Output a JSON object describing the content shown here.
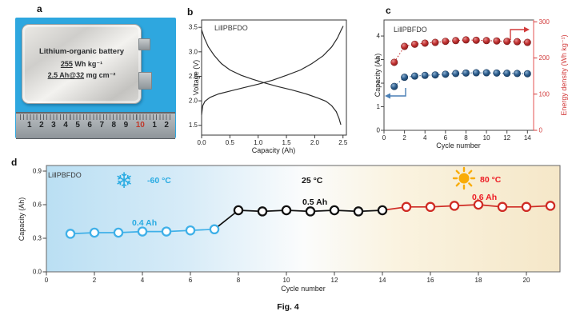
{
  "figure": {
    "caption": "Fig. 4"
  },
  "colors": {
    "photo_background": "#2ea7df",
    "capacity_blue": "#2d5e8e",
    "energy_red": "#c23030",
    "cold_blue": "#29abe2",
    "room_black": "#111111",
    "hot_red": "#cf2b24",
    "hot_text_red": "#ed1c24",
    "sun_yellow": "#f9ac08"
  },
  "panels": {
    "a": {
      "letter": "a",
      "battery_title": "Lithium-organic battery",
      "energy_density_value": "255",
      "energy_density_unit": " Wh kg⁻¹",
      "capacity_loading_value": "2.5 Ah@32",
      "capacity_loading_unit": " mg cm⁻²",
      "ruler": {
        "numbers": [
          "1",
          "2",
          "3",
          "4",
          "5",
          "6",
          "7",
          "8",
          "9",
          "10",
          "1",
          "2"
        ],
        "highlight_index": 9
      }
    },
    "b": {
      "letter": "b"
    },
    "c": {
      "letter": "c"
    },
    "d": {
      "letter": "d",
      "icons": {
        "snowflake": "❄",
        "sun": "sun-icon"
      }
    }
  },
  "chart_data": [
    {
      "id": "b",
      "type": "line",
      "title": "Li‖PBFDO",
      "xlabel": "Capacity (Ah)",
      "ylabel": "Voltage (V)",
      "xlim": [
        0,
        2.56
      ],
      "ylim": [
        1.3,
        3.65
      ],
      "xticks": [
        [
          0,
          "0.0"
        ],
        [
          0.5,
          "0.5"
        ],
        [
          1,
          "1.0"
        ],
        [
          1.5,
          "1.5"
        ],
        [
          2,
          "2.0"
        ],
        [
          2.5,
          "2.5"
        ]
      ],
      "yticks": [
        [
          1.5,
          "1.5"
        ],
        [
          2,
          "2.0"
        ],
        [
          2.5,
          "2.5"
        ],
        [
          3,
          "3.0"
        ],
        [
          3.5,
          "3.5"
        ]
      ],
      "series": [
        {
          "name": "discharge",
          "color": "#2a2a2a",
          "points": [
            [
              0,
              3.45
            ],
            [
              0.05,
              3.28
            ],
            [
              0.12,
              3.1
            ],
            [
              0.22,
              2.93
            ],
            [
              0.35,
              2.76
            ],
            [
              0.5,
              2.63
            ],
            [
              0.7,
              2.52
            ],
            [
              0.9,
              2.44
            ],
            [
              1.1,
              2.37
            ],
            [
              1.35,
              2.29
            ],
            [
              1.6,
              2.22
            ],
            [
              1.85,
              2.14
            ],
            [
              2.05,
              2.06
            ],
            [
              2.2,
              1.99
            ],
            [
              2.3,
              1.9
            ],
            [
              2.38,
              1.78
            ],
            [
              2.43,
              1.64
            ],
            [
              2.46,
              1.52
            ]
          ]
        },
        {
          "name": "charge",
          "color": "#2a2a2a",
          "points": [
            [
              0,
              1.72
            ],
            [
              0.02,
              1.9
            ],
            [
              0.06,
              1.99
            ],
            [
              0.15,
              2.07
            ],
            [
              0.3,
              2.14
            ],
            [
              0.5,
              2.2
            ],
            [
              0.75,
              2.27
            ],
            [
              1,
              2.34
            ],
            [
              1.25,
              2.42
            ],
            [
              1.5,
              2.52
            ],
            [
              1.75,
              2.63
            ],
            [
              1.95,
              2.76
            ],
            [
              2.15,
              2.92
            ],
            [
              2.3,
              3.1
            ],
            [
              2.4,
              3.28
            ],
            [
              2.47,
              3.45
            ],
            [
              2.5,
              3.52
            ]
          ]
        }
      ]
    },
    {
      "id": "c",
      "type": "scatter-line",
      "title": "Li‖PBFDO",
      "xlabel": "Cycle number",
      "ylabel_left": "Capacity (Ah)",
      "ylabel_right": "Energy density (Wh kg⁻¹)",
      "xlim": [
        0,
        14.6
      ],
      "ylim_left": [
        0,
        4.68
      ],
      "ylim_right": [
        0,
        305
      ],
      "xticks": [
        [
          0,
          "0"
        ],
        [
          2,
          "2"
        ],
        [
          4,
          "4"
        ],
        [
          6,
          "6"
        ],
        [
          8,
          "8"
        ],
        [
          10,
          "10"
        ],
        [
          12,
          "12"
        ],
        [
          14,
          "14"
        ]
      ],
      "yticks_left": [
        [
          0,
          "0"
        ],
        [
          1,
          "1"
        ],
        [
          2,
          "2"
        ],
        [
          3,
          "3"
        ],
        [
          4,
          "4"
        ]
      ],
      "yticks_right": [
        [
          0,
          "0"
        ],
        [
          100,
          "100"
        ],
        [
          200,
          "200"
        ],
        [
          300,
          "300"
        ]
      ],
      "x": [
        1,
        2,
        3,
        4,
        5,
        6,
        7,
        8,
        9,
        10,
        11,
        12,
        13,
        14
      ],
      "series": [
        {
          "name": "Capacity (Ah)",
          "axis": "left",
          "color": "#2d5e8e",
          "edge": "#16385c",
          "values": [
            1.86,
            2.25,
            2.3,
            2.33,
            2.35,
            2.38,
            2.41,
            2.43,
            2.44,
            2.44,
            2.43,
            2.42,
            2.41,
            2.4
          ]
        },
        {
          "name": "Energy density (Wh kg⁻¹)",
          "axis": "right",
          "color": "#c23030",
          "edge": "#7c1a1a",
          "values": [
            188,
            232,
            238,
            241,
            243,
            246,
            248,
            250,
            249,
            248,
            247,
            246,
            245,
            243
          ]
        }
      ]
    },
    {
      "id": "d",
      "type": "scatter-line",
      "title": "Li‖PBFDO",
      "xlabel": "Cycle number",
      "ylabel": "Capacity (Ah)",
      "xlim": [
        0,
        21.4
      ],
      "ylim": [
        0,
        0.95
      ],
      "xticks": [
        [
          0,
          "0"
        ],
        [
          2,
          "2"
        ],
        [
          4,
          "4"
        ],
        [
          6,
          "6"
        ],
        [
          8,
          "8"
        ],
        [
          10,
          "10"
        ],
        [
          12,
          "12"
        ],
        [
          14,
          "14"
        ],
        [
          16,
          "16"
        ],
        [
          18,
          "18"
        ],
        [
          20,
          "20"
        ]
      ],
      "yticks": [
        [
          0,
          "0.0"
        ],
        [
          0.3,
          "0.3"
        ],
        [
          0.6,
          "0.6"
        ],
        [
          0.9,
          "0.9"
        ]
      ],
      "segments": [
        {
          "name": "-60 °C",
          "capacity_label": "0.4 Ah",
          "color": "#3fb0e8",
          "text_color": "#29abe2",
          "x": [
            1,
            2,
            3,
            4,
            5,
            6,
            7
          ],
          "values": [
            0.34,
            0.35,
            0.35,
            0.36,
            0.36,
            0.37,
            0.38
          ]
        },
        {
          "name": "25 °C",
          "capacity_label": "0.5 Ah",
          "color": "#111111",
          "text_color": "#111111",
          "x": [
            8,
            9,
            10,
            11,
            12,
            13,
            14
          ],
          "values": [
            0.55,
            0.54,
            0.55,
            0.54,
            0.55,
            0.54,
            0.55
          ]
        },
        {
          "name": "80 °C",
          "capacity_label": "0.6 Ah",
          "color": "#cf2b24",
          "text_color": "#ed1c24",
          "x": [
            15,
            16,
            17,
            18,
            19,
            20,
            21
          ],
          "values": [
            0.58,
            0.58,
            0.59,
            0.6,
            0.58,
            0.58,
            0.59
          ]
        }
      ]
    }
  ]
}
